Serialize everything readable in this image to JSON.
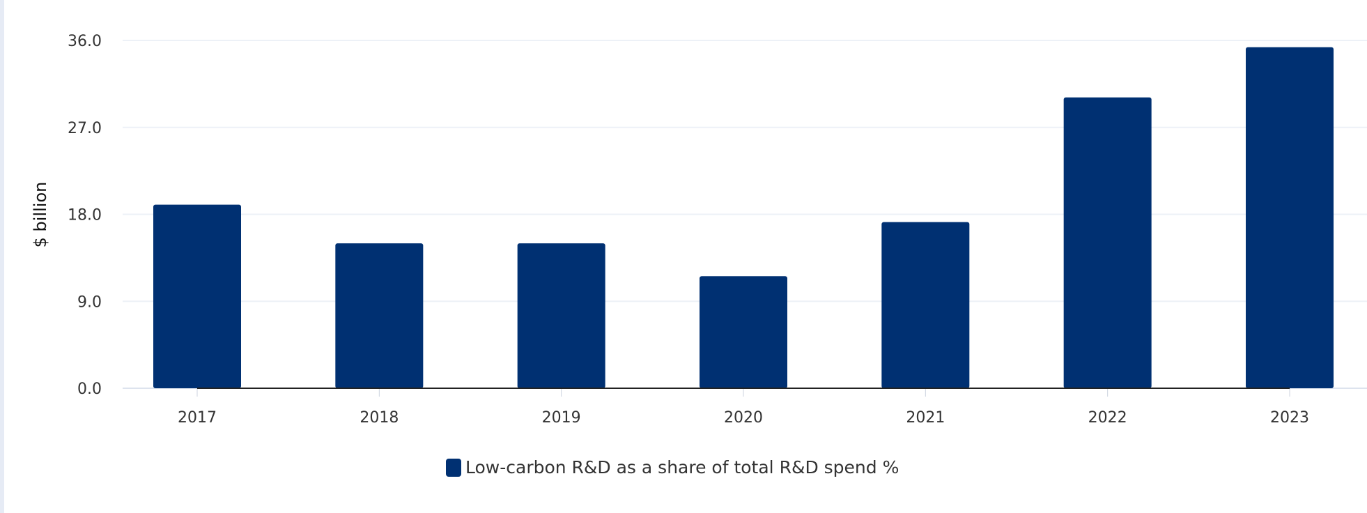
{
  "chart_data": {
    "type": "bar",
    "categories": [
      "2017",
      "2018",
      "2019",
      "2020",
      "2021",
      "2022",
      "2023"
    ],
    "series": [
      {
        "name": "Low-carbon R&D as a share of total R&D spend %",
        "values": [
          19.0,
          15.0,
          15.0,
          11.6,
          17.2,
          30.1,
          35.3
        ],
        "color": "#003072"
      }
    ],
    "ylabel": "$ billion",
    "xlabel": "",
    "ylim": [
      0,
      36
    ],
    "yticks": [
      "0.0",
      "9.0",
      "18.0",
      "27.0",
      "36.0"
    ],
    "grid": true,
    "legend_position": "bottom"
  }
}
